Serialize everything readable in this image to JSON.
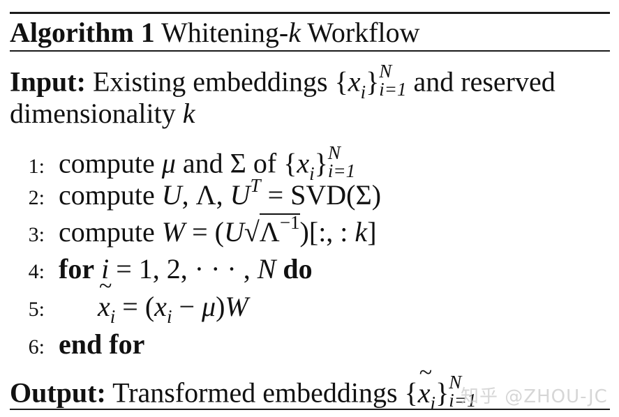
{
  "header": {
    "label": "Algorithm 1",
    "title_prefix": "Whitening-",
    "title_var": "k",
    "title_suffix": " Workflow"
  },
  "input": {
    "label": "Input:",
    "text": " Existing embeddings ",
    "set_open": "{",
    "set_var": "x",
    "set_sub": "i",
    "set_close": "}",
    "set_upper": "N",
    "set_lower": "i=1",
    "text2": " and reserved",
    "line2_text": "dimensionality ",
    "line2_var": "k"
  },
  "steps": [
    {
      "num": "1:",
      "text": "compute "
    },
    {
      "num": "2:",
      "text": "compute "
    },
    {
      "num": "3:",
      "text": "compute "
    },
    {
      "num": "4:",
      "text": "for"
    },
    {
      "num": "5:",
      "text": ""
    },
    {
      "num": "6:",
      "text": "end for"
    }
  ],
  "math": {
    "s1_mu": "μ",
    "s1_and": " and ",
    "s1_sigma": "Σ",
    "s1_of": " of ",
    "s1_open": "{",
    "s1_x": "x",
    "s1_i": "i",
    "s1_close": "}",
    "s1_up": "N",
    "s1_low": "i=1",
    "s2_U": "U",
    "s2_comma": ", Λ, ",
    "s2_UT": "U",
    "s2_T": "T",
    "s2_eq": " = ",
    "s2_svd": "SVD(Σ)",
    "s3_W": "W",
    "s3_eq": " = (",
    "s3_U": "U",
    "s3_root": "√",
    "s3_lambda": "Λ",
    "s3_exp": "−1",
    "s3_tail": ")[:, : ",
    "s3_k": "k",
    "s3_end": "]",
    "s4_i": "i",
    "s4_rest": " = 1, 2, · · · , ",
    "s4_N": "N",
    "s4_do": "do",
    "s5_x": "x",
    "s5_i": "i",
    "s5_eq": " = (",
    "s5_x2": "x",
    "s5_i2": "i",
    "s5_minus": " − ",
    "s5_mu": "μ",
    "s5_close": ")",
    "s5_W": "W"
  },
  "output": {
    "label": "Output:",
    "text": " Transformed embeddings ",
    "set_open": "{",
    "set_var": "x",
    "set_sub": "i",
    "set_close": "}",
    "set_upper": "N",
    "set_lower": "i=1"
  },
  "watermark": "知乎 @ZHOU-JC"
}
